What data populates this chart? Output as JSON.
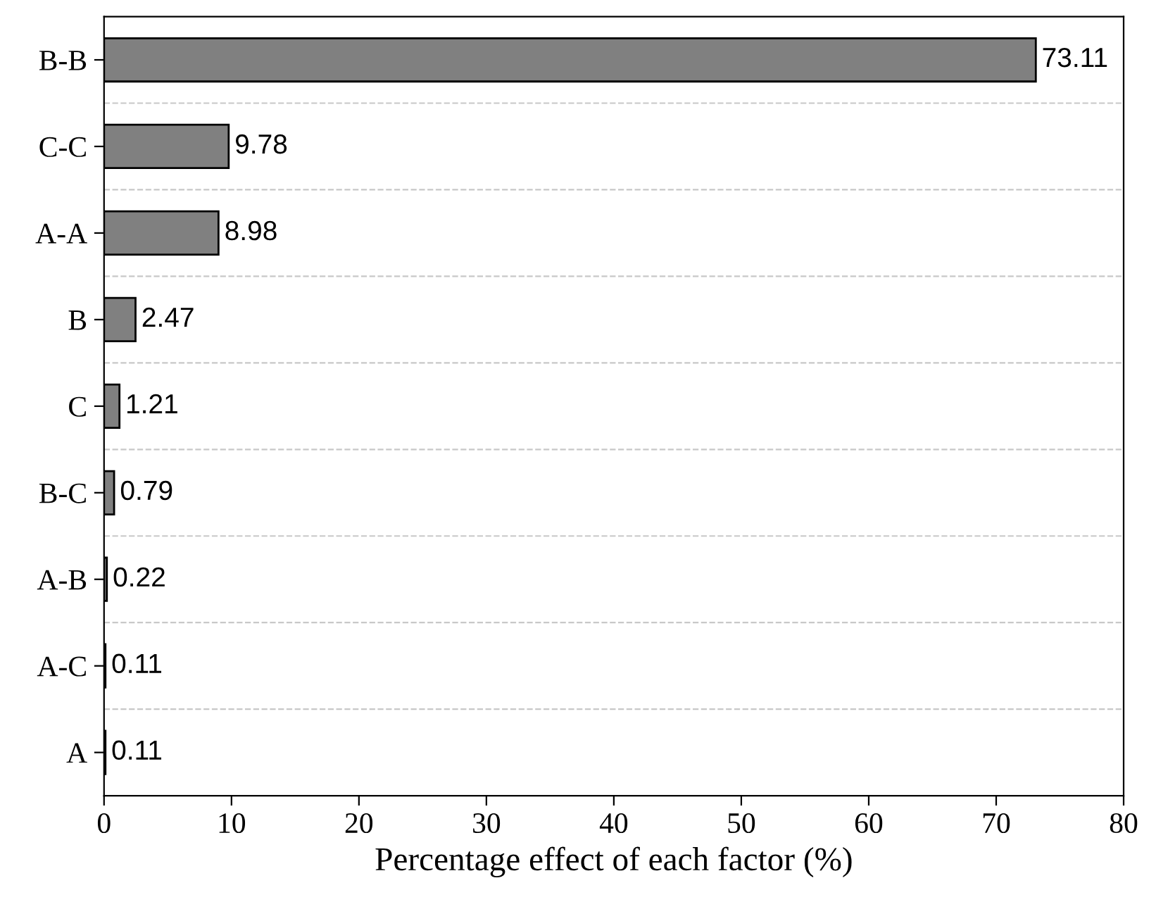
{
  "chart_data": {
    "type": "bar",
    "orientation": "horizontal",
    "xlabel": "Percentage effect of each factor (%)",
    "categories": [
      "B-B",
      "C-C",
      "A-A",
      "B",
      "C",
      "B-C",
      "A-B",
      "A-C",
      "A"
    ],
    "values": [
      73.11,
      9.78,
      8.98,
      2.47,
      1.21,
      0.79,
      0.22,
      0.11,
      0.11
    ],
    "color": "#808080",
    "xlim": [
      0,
      80
    ],
    "xticks": [
      0,
      10,
      20,
      30,
      40,
      50,
      60,
      70,
      80
    ],
    "grid": "y",
    "data_labels": true
  }
}
